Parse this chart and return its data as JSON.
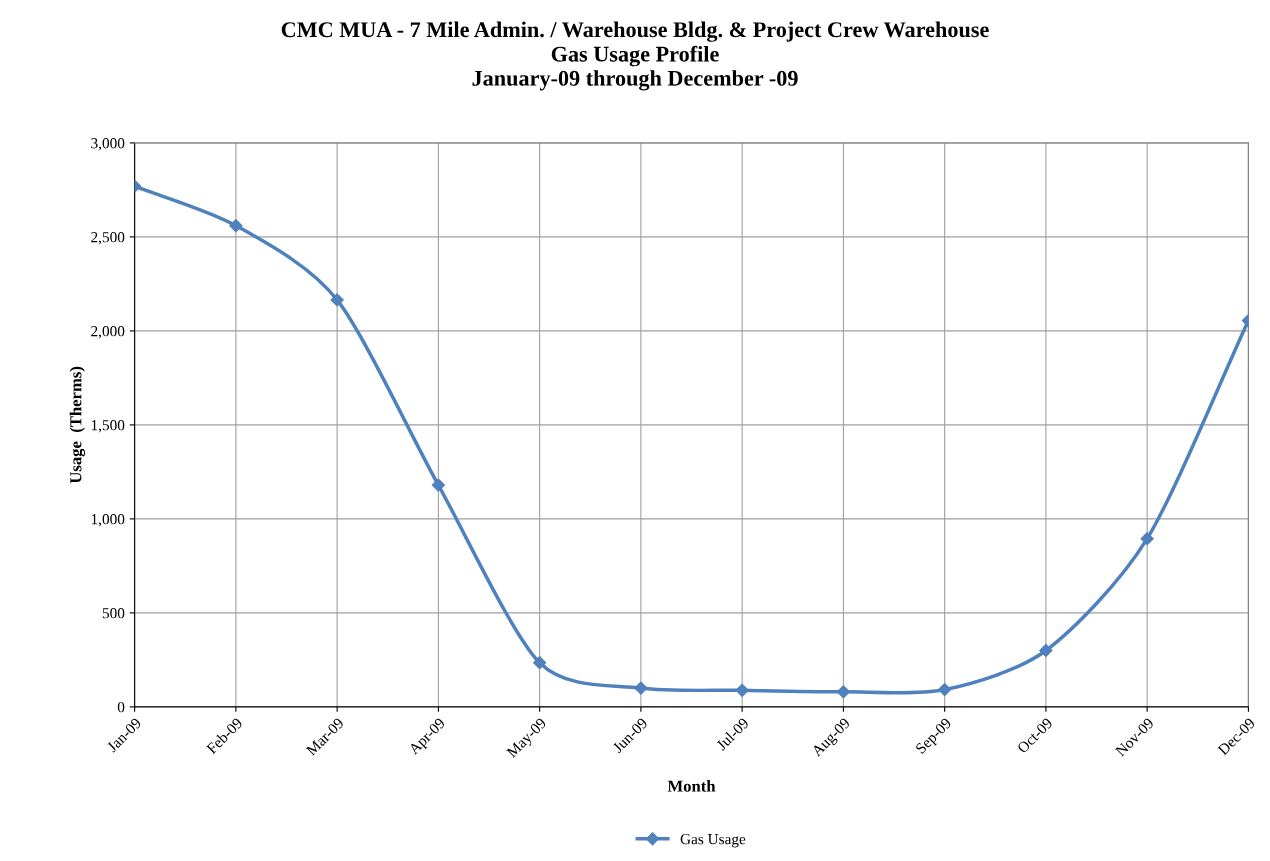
{
  "chart_data": {
    "type": "line",
    "title": "CMC MUA - 7 Mile Admin. / Warehouse Bldg. & Project Crew Warehouse\nGas Usage Profile\nJanuary-09 through December -09",
    "xlabel": "Month",
    "ylabel": "Usage  (Therms)",
    "categories": [
      "Jan-09",
      "Feb-09",
      "Mar-09",
      "Apr-09",
      "May-09",
      "Jun-09",
      "Jul-09",
      "Aug-09",
      "Sep-09",
      "Oct-09",
      "Nov-09",
      "Dec-09"
    ],
    "series": [
      {
        "name": "Gas Usage",
        "color": "#4f81bd",
        "values": [
          2770,
          2560,
          2165,
          1180,
          235,
          100,
          88,
          80,
          92,
          300,
          895,
          2055
        ]
      }
    ],
    "ylim": [
      0,
      3000
    ],
    "yticks": [
      {
        "value": 0,
        "label": "0"
      },
      {
        "value": 500,
        "label": "500"
      },
      {
        "value": 1000,
        "label": "1,000"
      },
      {
        "value": 1500,
        "label": "1,500"
      },
      {
        "value": 2000,
        "label": "2,000"
      },
      {
        "value": 2500,
        "label": "2,500"
      },
      {
        "value": 3000,
        "label": "3,000"
      }
    ],
    "grid": true,
    "legend": "bottom",
    "marker": "diamond",
    "line_style": "solid"
  }
}
